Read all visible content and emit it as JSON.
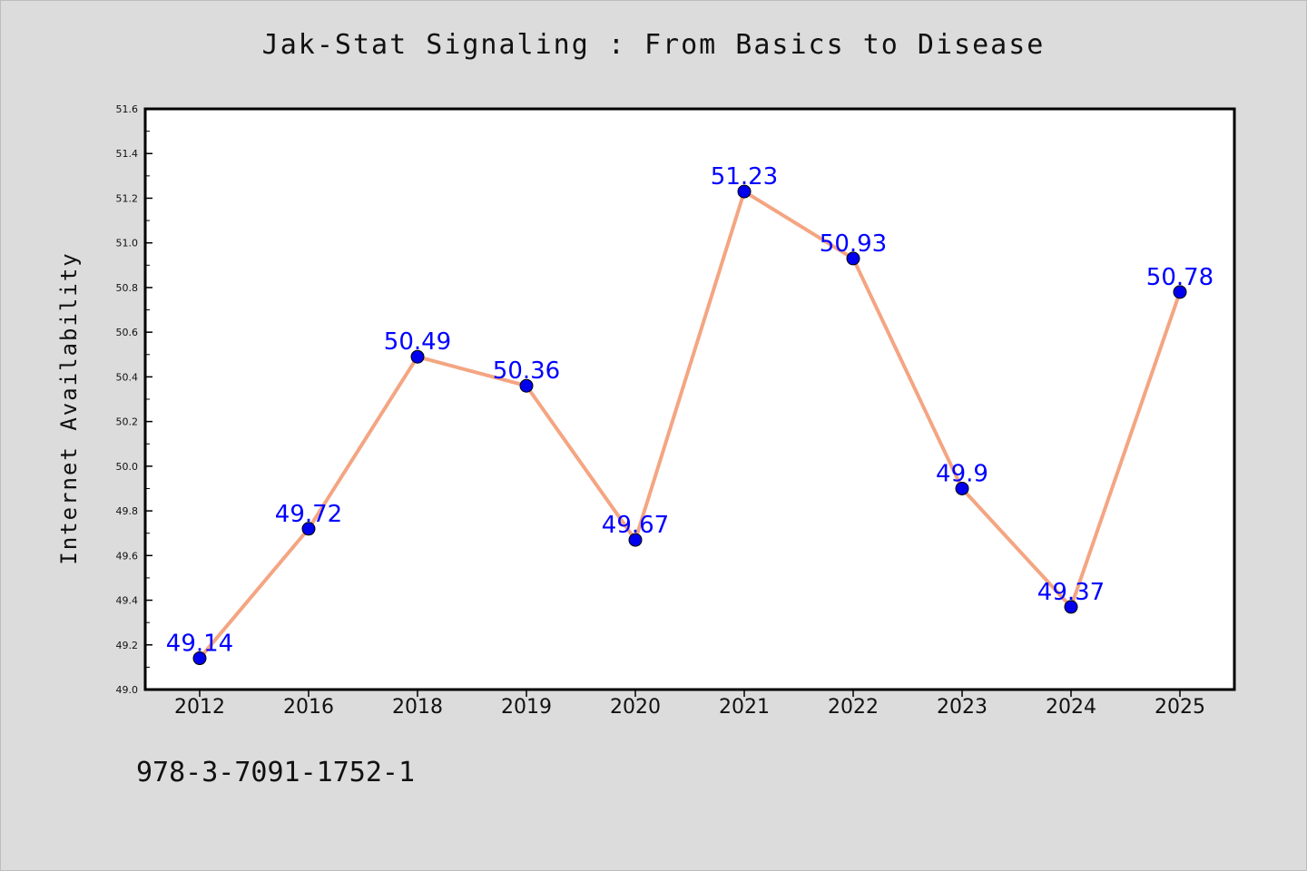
{
  "chart_data": {
    "type": "line",
    "title": "Jak-Stat Signaling : From Basics to Disease",
    "xlabel": "",
    "ylabel": "Internet Availability",
    "categories": [
      "2012",
      "2016",
      "2018",
      "2019",
      "2020",
      "2021",
      "2022",
      "2023",
      "2024",
      "2025"
    ],
    "values": [
      49.14,
      49.72,
      50.49,
      50.36,
      49.67,
      51.23,
      50.93,
      49.9,
      49.37,
      50.78
    ],
    "data_labels": [
      "49.14",
      "49.72",
      "50.49",
      "50.36",
      "49.67",
      "51.23",
      "50.93",
      "49.9",
      "49.37",
      "50.78"
    ],
    "ylim": [
      49.0,
      51.6
    ],
    "yticks": [
      "49.0",
      "49.2",
      "49.4",
      "49.6",
      "49.8",
      "50.0",
      "50.2",
      "50.4",
      "50.6",
      "50.8",
      "51.0",
      "51.2",
      "51.4",
      "51.6"
    ],
    "grid": false,
    "legend": "none"
  },
  "footer_text": "978-3-7091-1752-1",
  "colors": {
    "line": "#f4a582",
    "marker": "#0000ee",
    "data_label": "#0000ff",
    "background": "#dcdcdc",
    "plot_area": "#ffffff"
  }
}
